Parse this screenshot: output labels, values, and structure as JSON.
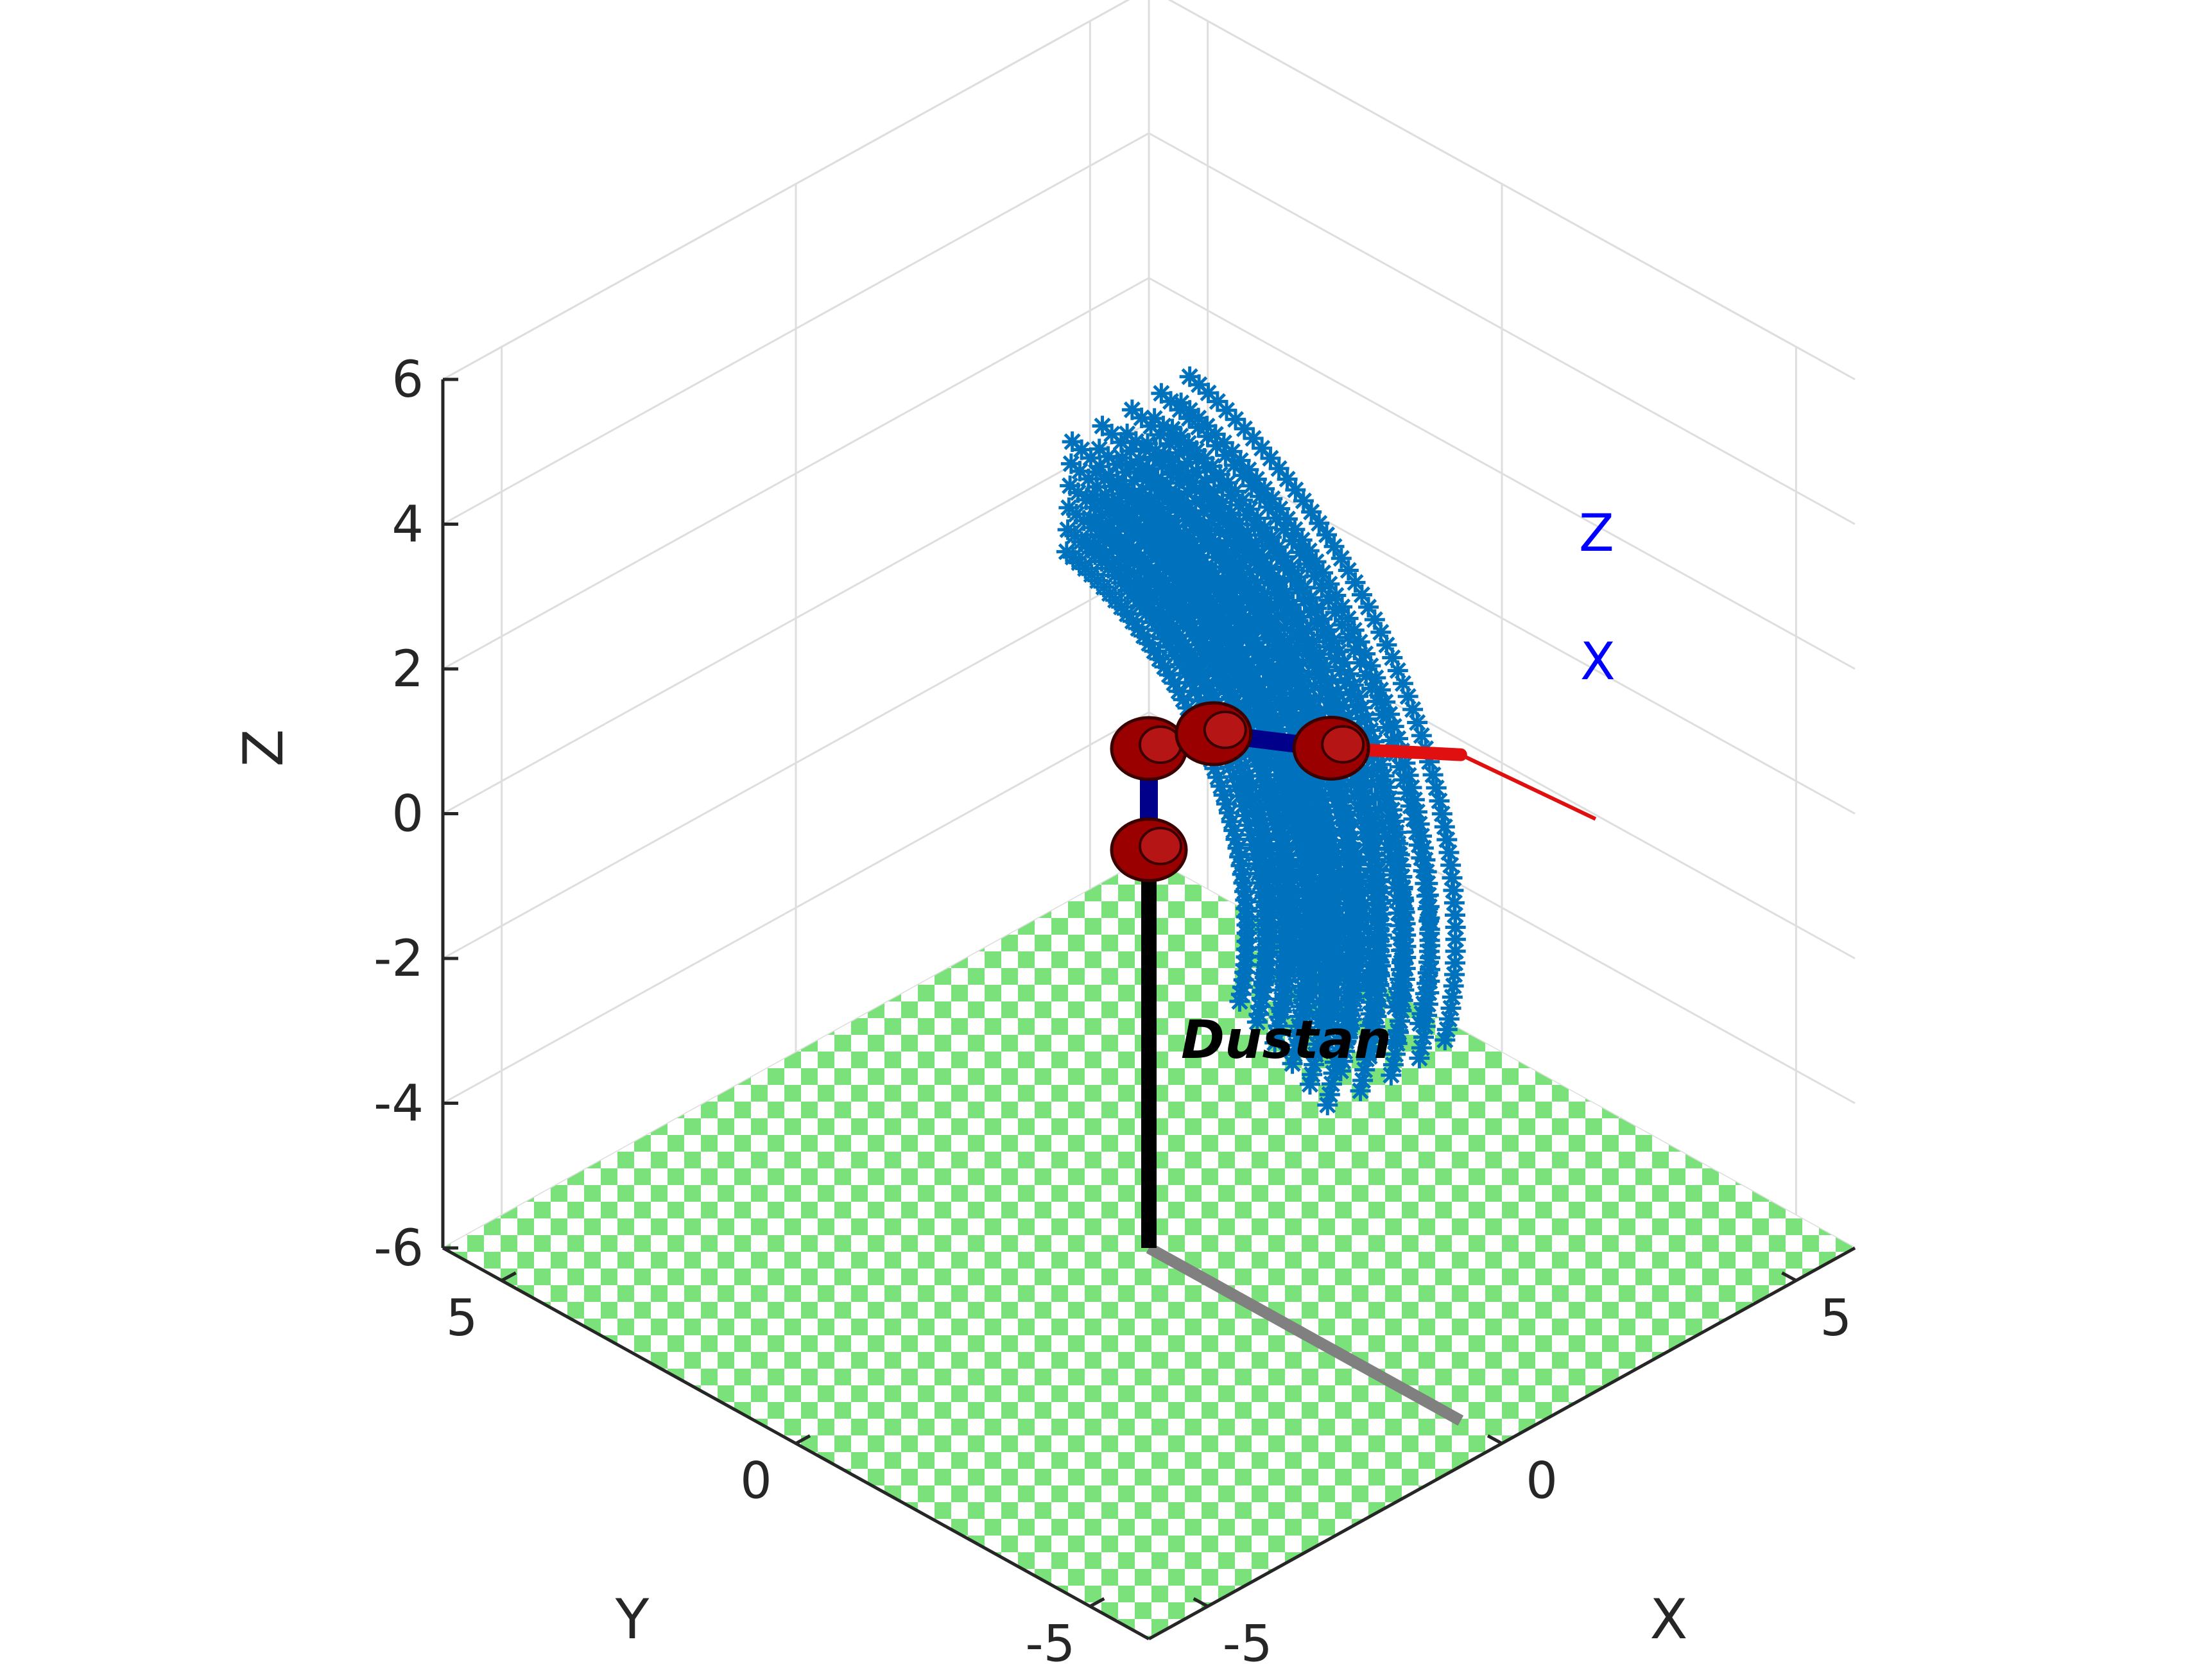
{
  "chart_data": {
    "type": "scatter",
    "projection": "3d",
    "axes": {
      "x": {
        "label": "X",
        "ticks": [
          -5,
          0,
          5
        ],
        "range": [
          -6,
          6
        ]
      },
      "y": {
        "label": "Y",
        "ticks": [
          -5,
          0,
          5
        ],
        "range": [
          -6,
          6
        ]
      },
      "z": {
        "label": "Z",
        "ticks": [
          -6,
          -4,
          -2,
          0,
          2,
          4,
          6
        ],
        "range": [
          -6,
          6
        ]
      }
    },
    "grid": true,
    "floor": "green-white checkerboard at z = -6",
    "series": [
      {
        "marker": "*",
        "color": "#0072bd",
        "description": "reachable end-effector positions of the arm",
        "x_range": [
          -1.5,
          6
        ],
        "y_range": [
          -1,
          1
        ],
        "z_range": [
          -3.5,
          6.5
        ]
      }
    ],
    "robot": {
      "name": "Dustan",
      "base": [
        0,
        0
      ],
      "joints": [
        [
          0,
          0,
          -0.5
        ],
        [
          0,
          0,
          0.9
        ],
        [
          1.1,
          0,
          1.6
        ],
        [
          3.1,
          0,
          2.3
        ]
      ],
      "tool_tip": [
        5.3,
        0,
        3.2
      ],
      "shadow": {
        "color": "#808080"
      },
      "pedestal": {
        "color": "#000000"
      },
      "link_color": "#00008b",
      "joint_color": "#9b0000",
      "tool_color": "#e01010",
      "frame_labels": [
        "Z",
        "X"
      ],
      "frame_label_color": "#0000ff"
    }
  }
}
